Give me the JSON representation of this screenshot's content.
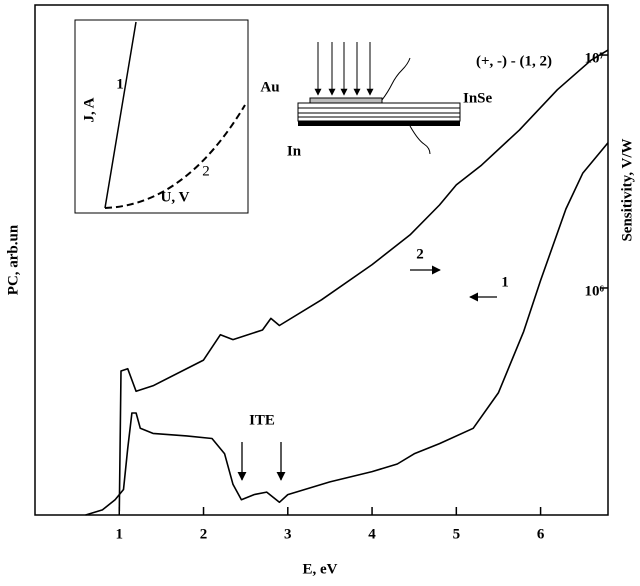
{
  "chart_data": {
    "type": "line",
    "xlabel": "E, eV",
    "ylabel": "PC, arb.un",
    "y2label": "Sensitivity, V/W",
    "xlim": [
      0,
      6.8
    ],
    "xticks": [
      1,
      2,
      3,
      4,
      5,
      6
    ],
    "ylim": [
      0,
      100
    ],
    "y2lim": [
      106000,
      16400000
    ],
    "y2log": true,
    "y2ticks": [
      {
        "value": 1000000,
        "label": "10⁶"
      },
      {
        "value": 10000000,
        "label": "10⁷"
      }
    ],
    "series": [
      {
        "name": "1",
        "color": "#000000",
        "axis": "y",
        "x": [
          0.6,
          0.8,
          0.95,
          1.05,
          1.1,
          1.15,
          1.2,
          1.25,
          1.4,
          1.8,
          2.1,
          2.25,
          2.35,
          2.45,
          2.6,
          2.75,
          2.9,
          3.0,
          3.5,
          4.0,
          4.3,
          4.5,
          4.8,
          5.2,
          5.5,
          5.8,
          6.0,
          6.3,
          6.5,
          6.8
        ],
        "values": [
          0,
          1,
          3,
          5,
          13,
          20,
          20,
          17,
          16,
          15.5,
          15,
          12,
          6,
          3,
          4,
          4.5,
          2.5,
          4,
          6.5,
          8.5,
          10,
          12,
          14,
          17,
          24,
          36,
          46,
          60,
          67,
          73
        ]
      },
      {
        "name": "2",
        "color": "#000000",
        "axis": "y2",
        "x": [
          1.0,
          1.02,
          1.1,
          1.2,
          1.4,
          2.0,
          2.2,
          2.35,
          2.7,
          2.8,
          2.9,
          3.4,
          4.0,
          4.45,
          4.8,
          5.0,
          5.3,
          5.75,
          6.2,
          6.6,
          6.8
        ],
        "values": [
          110000,
          440000,
          450000,
          360000,
          380000,
          490000,
          630000,
          600000,
          660000,
          740000,
          690000,
          890000,
          1260000,
          1690000,
          2270000,
          2770000,
          3370000,
          4770000,
          7100000,
          9500000,
          10500000
        ]
      }
    ],
    "annotations": [
      "ITE"
    ]
  },
  "inset": {
    "xlabel": "U, V",
    "ylabel": "J, A",
    "curve_labels": [
      "1",
      "2"
    ]
  },
  "schematic": {
    "labels": [
      "Au",
      "InSe",
      "In",
      "(+, -) - (1, 2)"
    ]
  }
}
